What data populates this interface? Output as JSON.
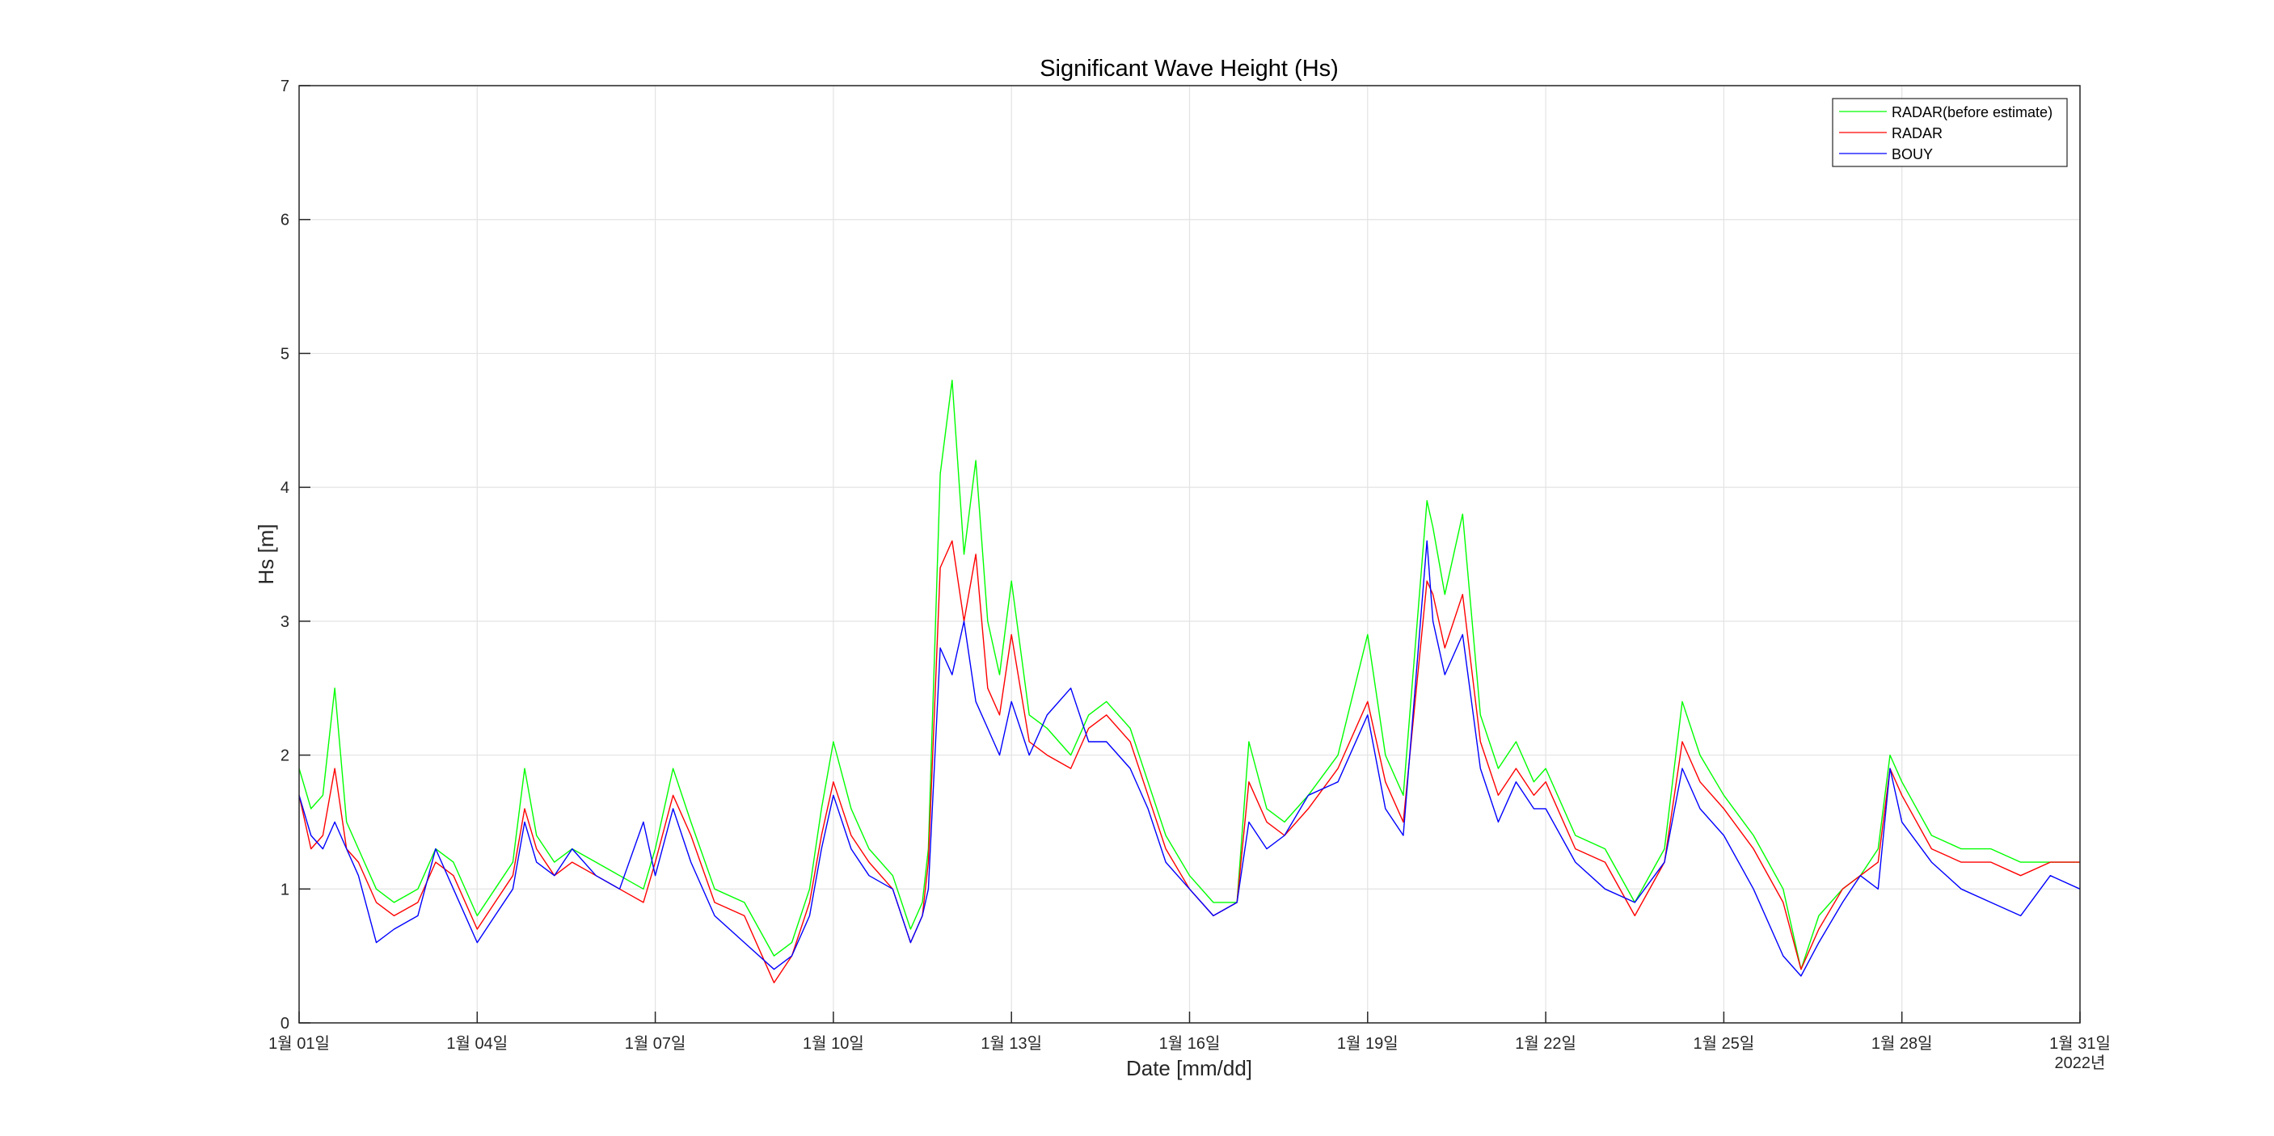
{
  "chart_data": {
    "type": "line",
    "title": "Significant Wave Height (Hs)",
    "xlabel": "Date [mm/dd]",
    "ylabel": "Hs [m]",
    "year_label": "2022년",
    "xlim": [
      1,
      31
    ],
    "ylim": [
      0,
      7
    ],
    "grid": true,
    "legend_position": "top-right",
    "x_ticks": [
      1,
      4,
      7,
      10,
      13,
      16,
      19,
      22,
      25,
      28,
      31
    ],
    "x_tick_labels": [
      "1월 01일",
      "1월 04일",
      "1월 07일",
      "1월 10일",
      "1월 13일",
      "1월 16일",
      "1월 19일",
      "1월 22일",
      "1월 25일",
      "1월 28일",
      "1월 31일"
    ],
    "y_ticks": [
      0,
      1,
      2,
      3,
      4,
      5,
      6,
      7
    ],
    "y_tick_labels": [
      "0",
      "1",
      "2",
      "3",
      "4",
      "5",
      "6",
      "7"
    ],
    "series": [
      {
        "name": "RADAR(before estimate)",
        "color": "#00ff00",
        "x": [
          1.0,
          1.2,
          1.4,
          1.6,
          1.8,
          2.0,
          2.3,
          2.6,
          3.0,
          3.3,
          3.6,
          4.0,
          4.3,
          4.6,
          4.8,
          5.0,
          5.3,
          5.6,
          6.0,
          6.4,
          6.8,
          7.0,
          7.3,
          7.6,
          8.0,
          8.5,
          9.0,
          9.3,
          9.6,
          9.8,
          10.0,
          10.3,
          10.6,
          11.0,
          11.3,
          11.5,
          11.6,
          11.8,
          12.0,
          12.2,
          12.4,
          12.6,
          12.8,
          13.0,
          13.3,
          13.6,
          14.0,
          14.3,
          14.6,
          15.0,
          15.3,
          15.6,
          16.0,
          16.4,
          16.8,
          17.0,
          17.3,
          17.6,
          18.0,
          18.5,
          19.0,
          19.3,
          19.6,
          20.0,
          20.1,
          20.3,
          20.6,
          20.9,
          21.2,
          21.5,
          21.8,
          22.0,
          22.5,
          23.0,
          23.5,
          24.0,
          24.3,
          24.6,
          25.0,
          25.5,
          26.0,
          26.3,
          26.6,
          27.0,
          27.3,
          27.6,
          27.8,
          28.0,
          28.5,
          29.0,
          29.5,
          30.0,
          30.5,
          31.0
        ],
        "values": [
          1.9,
          1.6,
          1.7,
          2.5,
          1.5,
          1.3,
          1.0,
          0.9,
          1.0,
          1.3,
          1.2,
          0.8,
          1.0,
          1.2,
          1.9,
          1.4,
          1.2,
          1.3,
          1.2,
          1.1,
          1.0,
          1.3,
          1.9,
          1.5,
          1.0,
          0.9,
          0.5,
          0.6,
          1.0,
          1.6,
          2.1,
          1.6,
          1.3,
          1.1,
          0.7,
          0.9,
          1.3,
          4.1,
          4.8,
          3.5,
          4.2,
          3.0,
          2.6,
          3.3,
          2.3,
          2.2,
          2.0,
          2.3,
          2.4,
          2.2,
          1.8,
          1.4,
          1.1,
          0.9,
          0.9,
          2.1,
          1.6,
          1.5,
          1.7,
          2.0,
          2.9,
          2.0,
          1.7,
          3.9,
          3.7,
          3.2,
          3.8,
          2.3,
          1.9,
          2.1,
          1.8,
          1.9,
          1.4,
          1.3,
          0.9,
          1.3,
          2.4,
          2.0,
          1.7,
          1.4,
          1.0,
          0.4,
          0.8,
          1.0,
          1.1,
          1.3,
          2.0,
          1.8,
          1.4,
          1.3,
          1.3,
          1.2,
          1.2,
          1.2
        ]
      },
      {
        "name": "RADAR",
        "color": "#ff0000",
        "x": [
          1.0,
          1.2,
          1.4,
          1.6,
          1.8,
          2.0,
          2.3,
          2.6,
          3.0,
          3.3,
          3.6,
          4.0,
          4.3,
          4.6,
          4.8,
          5.0,
          5.3,
          5.6,
          6.0,
          6.4,
          6.8,
          7.0,
          7.3,
          7.6,
          8.0,
          8.5,
          9.0,
          9.3,
          9.6,
          9.8,
          10.0,
          10.3,
          10.6,
          11.0,
          11.3,
          11.5,
          11.6,
          11.8,
          12.0,
          12.2,
          12.4,
          12.6,
          12.8,
          13.0,
          13.3,
          13.6,
          14.0,
          14.3,
          14.6,
          15.0,
          15.3,
          15.6,
          16.0,
          16.4,
          16.8,
          17.0,
          17.3,
          17.6,
          18.0,
          18.5,
          19.0,
          19.3,
          19.6,
          20.0,
          20.1,
          20.3,
          20.6,
          20.9,
          21.2,
          21.5,
          21.8,
          22.0,
          22.5,
          23.0,
          23.5,
          24.0,
          24.3,
          24.6,
          25.0,
          25.5,
          26.0,
          26.3,
          26.6,
          27.0,
          27.3,
          27.6,
          27.8,
          28.0,
          28.5,
          29.0,
          29.5,
          30.0,
          30.5,
          31.0
        ],
        "values": [
          1.7,
          1.3,
          1.4,
          1.9,
          1.3,
          1.2,
          0.9,
          0.8,
          0.9,
          1.2,
          1.1,
          0.7,
          0.9,
          1.1,
          1.6,
          1.3,
          1.1,
          1.2,
          1.1,
          1.0,
          0.9,
          1.2,
          1.7,
          1.4,
          0.9,
          0.8,
          0.3,
          0.5,
          0.9,
          1.4,
          1.8,
          1.4,
          1.2,
          1.0,
          0.6,
          0.8,
          1.2,
          3.4,
          3.6,
          3.0,
          3.5,
          2.5,
          2.3,
          2.9,
          2.1,
          2.0,
          1.9,
          2.2,
          2.3,
          2.1,
          1.7,
          1.3,
          1.0,
          0.8,
          0.9,
          1.8,
          1.5,
          1.4,
          1.6,
          1.9,
          2.4,
          1.8,
          1.5,
          3.3,
          3.2,
          2.8,
          3.2,
          2.1,
          1.7,
          1.9,
          1.7,
          1.8,
          1.3,
          1.2,
          0.8,
          1.2,
          2.1,
          1.8,
          1.6,
          1.3,
          0.9,
          0.4,
          0.7,
          1.0,
          1.1,
          1.2,
          1.9,
          1.7,
          1.3,
          1.2,
          1.2,
          1.1,
          1.2,
          1.2
        ]
      },
      {
        "name": "BOUY",
        "color": "#0000ff",
        "x": [
          1.0,
          1.2,
          1.4,
          1.6,
          1.8,
          2.0,
          2.3,
          2.6,
          3.0,
          3.3,
          3.6,
          4.0,
          4.3,
          4.6,
          4.8,
          5.0,
          5.3,
          5.6,
          6.0,
          6.4,
          6.8,
          7.0,
          7.3,
          7.6,
          8.0,
          8.5,
          9.0,
          9.3,
          9.6,
          9.8,
          10.0,
          10.3,
          10.6,
          11.0,
          11.3,
          11.5,
          11.6,
          11.8,
          12.0,
          12.2,
          12.4,
          12.6,
          12.8,
          13.0,
          13.3,
          13.6,
          14.0,
          14.3,
          14.6,
          15.0,
          15.3,
          15.6,
          16.0,
          16.4,
          16.8,
          17.0,
          17.3,
          17.6,
          18.0,
          18.5,
          19.0,
          19.3,
          19.6,
          20.0,
          20.1,
          20.3,
          20.6,
          20.9,
          21.2,
          21.5,
          21.8,
          22.0,
          22.5,
          23.0,
          23.5,
          24.0,
          24.3,
          24.6,
          25.0,
          25.5,
          26.0,
          26.3,
          26.6,
          27.0,
          27.3,
          27.6,
          27.8,
          28.0,
          28.5,
          29.0,
          29.5,
          30.0,
          30.5,
          31.0
        ],
        "values": [
          1.7,
          1.4,
          1.3,
          1.5,
          1.3,
          1.1,
          0.6,
          0.7,
          0.8,
          1.3,
          1.0,
          0.6,
          0.8,
          1.0,
          1.5,
          1.2,
          1.1,
          1.3,
          1.1,
          1.0,
          1.5,
          1.1,
          1.6,
          1.2,
          0.8,
          0.6,
          0.4,
          0.5,
          0.8,
          1.3,
          1.7,
          1.3,
          1.1,
          1.0,
          0.6,
          0.8,
          1.0,
          2.8,
          2.6,
          3.0,
          2.4,
          2.2,
          2.0,
          2.4,
          2.0,
          2.3,
          2.5,
          2.1,
          2.1,
          1.9,
          1.6,
          1.2,
          1.0,
          0.8,
          0.9,
          1.5,
          1.3,
          1.4,
          1.7,
          1.8,
          2.3,
          1.6,
          1.4,
          3.6,
          3.0,
          2.6,
          2.9,
          1.9,
          1.5,
          1.8,
          1.6,
          1.6,
          1.2,
          1.0,
          0.9,
          1.2,
          1.9,
          1.6,
          1.4,
          1.0,
          0.5,
          0.35,
          0.6,
          0.9,
          1.1,
          1.0,
          1.9,
          1.5,
          1.2,
          1.0,
          0.9,
          0.8,
          1.1,
          1.0
        ]
      }
    ]
  }
}
